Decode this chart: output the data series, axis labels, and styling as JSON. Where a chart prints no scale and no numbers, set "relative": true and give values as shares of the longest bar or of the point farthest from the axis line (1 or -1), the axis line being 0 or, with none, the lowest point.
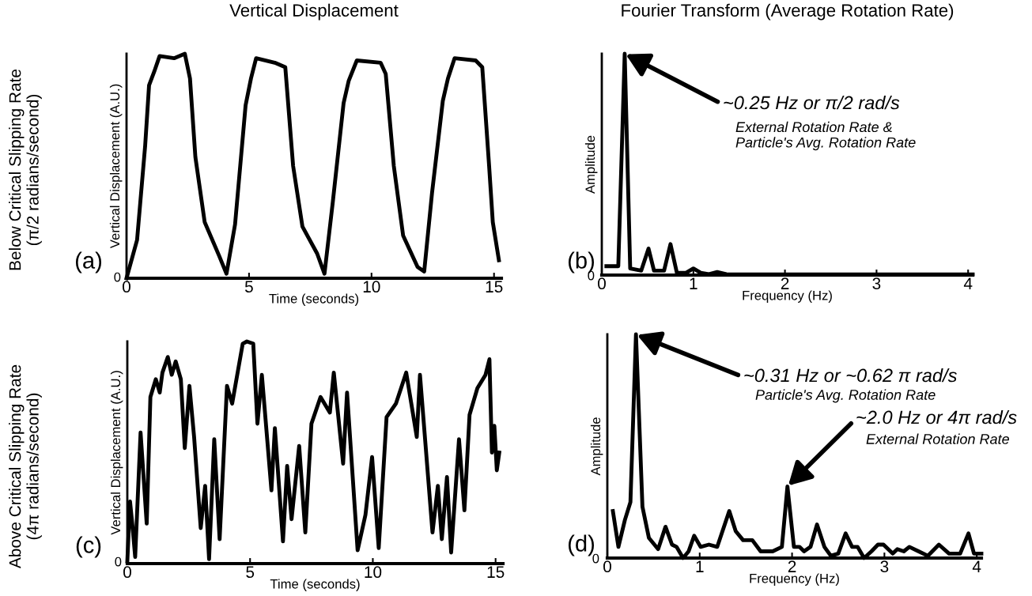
{
  "chart_data": [
    {
      "type": "line",
      "title": "Vertical Displacement",
      "xlabel": "Time (seconds)",
      "ylabel": "Vertical Displacement (A.U.)",
      "relative": true,
      "xlim": [
        0,
        15.3
      ],
      "xticks": [
        0,
        5,
        10,
        15
      ],
      "grid": false,
      "legend": false,
      "marker": "none",
      "line_style": "solid",
      "x": [
        0,
        0.43,
        0.76,
        0.92,
        1.13,
        1.35,
        1.94,
        2.38,
        2.59,
        2.81,
        3.19,
        3.78,
        4.08,
        4.43,
        4.86,
        5.08,
        5.29,
        6.05,
        6.48,
        6.8,
        7.18,
        7.78,
        8.08,
        8.42,
        8.86,
        9.07,
        9.4,
        10.37,
        10.58,
        10.91,
        11.29,
        11.88,
        12.15,
        12.47,
        12.91,
        13.12,
        13.39,
        14.25,
        14.52,
        14.8,
        14.95,
        15.2
      ],
      "series": [
        {
          "color": "#000000",
          "values": [
            0,
            0.17,
            0.59,
            0.86,
            0.92,
            0.99,
            0.98,
            1.0,
            0.89,
            0.54,
            0.25,
            0.1,
            0.02,
            0.24,
            0.77,
            0.89,
            0.98,
            0.96,
            0.94,
            0.5,
            0.23,
            0.11,
            0.02,
            0.34,
            0.78,
            0.88,
            0.97,
            0.96,
            0.91,
            0.5,
            0.19,
            0.05,
            0.03,
            0.38,
            0.79,
            0.89,
            0.98,
            0.97,
            0.94,
            0.5,
            0.25,
            0.08
          ]
        }
      ],
      "annotations": [
        "0",
        "(a)",
        "Below Critical Slipping Rate\n(π/2 radians/second)"
      ]
    },
    {
      "type": "line",
      "title": "Fourier Transform (Average Rotation Rate)",
      "xlabel": "Frequency (Hz)",
      "ylabel": "Amplitude",
      "relative": true,
      "xlim": [
        0,
        4.05
      ],
      "xticks": [
        0,
        1,
        2,
        3,
        4
      ],
      "grid": false,
      "legend": false,
      "marker": "none",
      "line_style": "solid",
      "x": [
        0.05,
        0.18,
        0.25,
        0.31,
        0.43,
        0.51,
        0.57,
        0.68,
        0.75,
        0.82,
        0.92,
        1.0,
        1.08,
        1.17,
        1.26,
        1.36,
        1.6,
        2.0,
        2.5,
        3.0,
        3.5,
        4.05
      ],
      "series": [
        {
          "color": "#000000",
          "values": [
            0.04,
            0.04,
            1.0,
            0.03,
            0.02,
            0.12,
            0.02,
            0.02,
            0.14,
            0.01,
            0.01,
            0.03,
            0.01,
            0.004,
            0.014,
            0.004,
            0.003,
            0.003,
            0.003,
            0.003,
            0.003,
            0.003
          ]
        }
      ],
      "annotations": [
        "0",
        "(b)",
        {
          "text": "~0.25 Hz or π/2 rad/s",
          "x": 0.25,
          "y": 1.0
        },
        "External Rotation Rate &\nParticle's Avg. Rotation Rate"
      ]
    },
    {
      "type": "line",
      "xlabel": "Time (seconds)",
      "ylabel": "Vertical Displacement (A.U.)",
      "relative": true,
      "xlim": [
        0,
        15.3
      ],
      "xticks": [
        0,
        5,
        10,
        15
      ],
      "grid": false,
      "legend": false,
      "marker": "none",
      "line_style": "solid",
      "x": [
        0,
        0.11,
        0.21,
        0.32,
        0.54,
        0.79,
        0.94,
        1.16,
        1.32,
        1.43,
        1.65,
        1.81,
        1.97,
        2.18,
        2.34,
        2.53,
        2.72,
        2.99,
        3.17,
        3.33,
        3.54,
        3.76,
        4.06,
        4.27,
        4.7,
        4.87,
        5.13,
        5.3,
        5.48,
        5.87,
        6.01,
        6.34,
        6.51,
        6.69,
        7.0,
        7.25,
        7.5,
        7.87,
        8.25,
        8.41,
        8.79,
        8.95,
        9.38,
        9.7,
        9.97,
        10.24,
        10.56,
        10.94,
        11.36,
        11.79,
        11.92,
        12.43,
        12.65,
        12.81,
        13.02,
        13.19,
        13.51,
        13.73,
        13.94,
        14.26,
        14.59,
        14.75,
        14.85,
        14.95,
        15.05,
        15.15
      ],
      "series": [
        {
          "color": "#000000",
          "values": [
            0.01,
            0.28,
            0.17,
            0.03,
            0.59,
            0.18,
            0.75,
            0.83,
            0.77,
            0.86,
            0.93,
            0.85,
            0.91,
            0.83,
            0.52,
            0.8,
            0.57,
            0.16,
            0.35,
            0.02,
            0.56,
            0.11,
            0.8,
            0.72,
            0.99,
            1.0,
            0.99,
            0.63,
            0.85,
            0.33,
            0.61,
            0.1,
            0.44,
            0.2,
            0.53,
            0.14,
            0.63,
            0.75,
            0.68,
            0.86,
            0.45,
            0.77,
            0.06,
            0.22,
            0.48,
            0.07,
            0.66,
            0.72,
            0.86,
            0.57,
            0.85,
            0.14,
            0.35,
            0.11,
            0.39,
            0.05,
            0.56,
            0.24,
            0.67,
            0.79,
            0.85,
            0.92,
            0.5,
            0.62,
            0.42,
            0.5
          ]
        }
      ],
      "annotations": [
        "0",
        "(c)",
        "Above Critical Slipping Rate\n(4π radians/second)"
      ]
    },
    {
      "type": "line",
      "xlabel": "Frequency (Hz)",
      "ylabel": "Amplitude",
      "relative": true,
      "xlim": [
        0,
        4.05
      ],
      "xticks": [
        0,
        1,
        2,
        3,
        4
      ],
      "grid": false,
      "legend": false,
      "marker": "none",
      "line_style": "solid",
      "x": [
        0.06,
        0.12,
        0.19,
        0.25,
        0.31,
        0.38,
        0.45,
        0.55,
        0.63,
        0.7,
        0.75,
        0.82,
        0.88,
        0.94,
        1.01,
        1.1,
        1.19,
        1.32,
        1.39,
        1.47,
        1.57,
        1.66,
        1.79,
        1.89,
        1.95,
        2.02,
        2.08,
        2.13,
        2.2,
        2.27,
        2.35,
        2.42,
        2.5,
        2.58,
        2.65,
        2.71,
        2.78,
        2.86,
        2.93,
        2.99,
        3.09,
        3.14,
        3.21,
        3.27,
        3.37,
        3.47,
        3.59,
        3.7,
        3.82,
        3.91,
        3.97,
        4.05
      ],
      "series": [
        {
          "color": "#000000",
          "values": [
            0.21,
            0.05,
            0.17,
            0.25,
            1.0,
            0.23,
            0.09,
            0.04,
            0.14,
            0.06,
            0.05,
            0.0,
            0.03,
            0.1,
            0.05,
            0.06,
            0.05,
            0.21,
            0.12,
            0.08,
            0.08,
            0.03,
            0.03,
            0.05,
            0.32,
            0.05,
            0.05,
            0.03,
            0.05,
            0.15,
            0.05,
            0.01,
            0.02,
            0.11,
            0.05,
            0.05,
            0.0,
            0.03,
            0.06,
            0.06,
            0.02,
            0.04,
            0.03,
            0.05,
            0.03,
            0.01,
            0.06,
            0.02,
            0.02,
            0.11,
            0.02,
            0.02
          ]
        }
      ],
      "annotations": [
        "0",
        "(d)",
        {
          "text": "~0.31 Hz or ~0.62 π rad/s",
          "x": 0.31,
          "y": 1.0
        },
        "Particle's Avg. Rotation Rate",
        {
          "text": "~2.0 Hz or 4π rad/s",
          "x": 1.95,
          "y": 0.32
        },
        "External Rotation Rate"
      ]
    }
  ]
}
